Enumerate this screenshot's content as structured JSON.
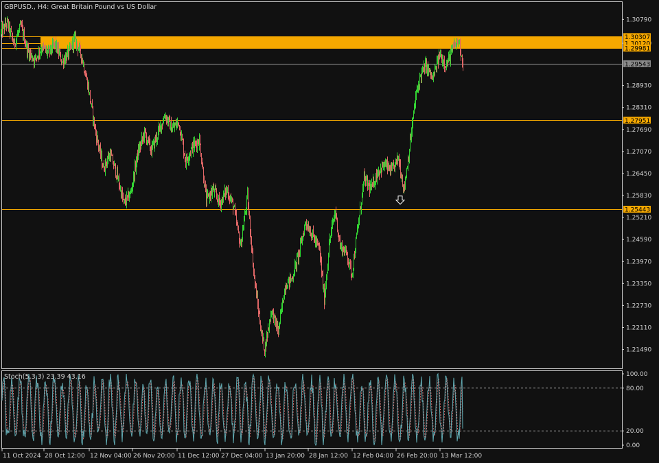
{
  "header": {
    "symbol_line": "GBPUSD., H4:  Great Britain Pound vs US Dollar"
  },
  "colors": {
    "background": "#111111",
    "frame": "#cfcfcf",
    "bull": "#33d433",
    "bear": "#e06666",
    "level": "#f5a800",
    "zone": "#f5a800",
    "current_line": "#9a9a9a",
    "stoch_main": "#5fa8b0",
    "stoch_signal": "#e07070"
  },
  "chart_data": [
    {
      "type": "candlestick",
      "title": "GBPUSD., H4:  Great Britain Pound vs US Dollar",
      "ylim": [
        1.2096,
        1.3128
      ],
      "y_ticks": [
        "1.30790",
        "1.30120",
        "1.28930",
        "1.28310",
        "1.27690",
        "1.27070",
        "1.26450",
        "1.25830",
        "1.25210",
        "1.24590",
        "1.23970",
        "1.23350",
        "1.22730",
        "1.22110",
        "1.21490"
      ],
      "x_ticks": [
        "11 Oct 2024",
        "28 Oct 12:00",
        "12 Nov 04:00",
        "26 Nov 20:00",
        "11 Dec 12:00",
        "27 Dec 04:00",
        "13 Jan 20:00",
        "28 Jan 12:00",
        "12 Feb 04:00",
        "26 Feb 20:00",
        "13 Mar 12:00"
      ],
      "price_path": [
        [
          0,
          1.304
        ],
        [
          10,
          1.307
        ],
        [
          20,
          1.301
        ],
        [
          30,
          1.306
        ],
        [
          40,
          1.299
        ],
        [
          50,
          1.2965
        ],
        [
          60,
          1.3
        ],
        [
          70,
          1.2985
        ],
        [
          80,
          1.301
        ],
        [
          90,
          1.296
        ],
        [
          100,
          1.2985
        ],
        [
          108,
          1.3025
        ],
        [
          118,
          1.298
        ],
        [
          128,
          1.289
        ],
        [
          138,
          1.277
        ],
        [
          150,
          1.266
        ],
        [
          160,
          1.27
        ],
        [
          170,
          1.264
        ],
        [
          180,
          1.256
        ],
        [
          190,
          1.259
        ],
        [
          200,
          1.27
        ],
        [
          210,
          1.276
        ],
        [
          220,
          1.271
        ],
        [
          230,
          1.276
        ],
        [
          240,
          1.281
        ],
        [
          250,
          1.277
        ],
        [
          260,
          1.279
        ],
        [
          270,
          1.268
        ],
        [
          280,
          1.272
        ],
        [
          290,
          1.274
        ],
        [
          300,
          1.257
        ],
        [
          310,
          1.26
        ],
        [
          320,
          1.256
        ],
        [
          330,
          1.26
        ],
        [
          340,
          1.255
        ],
        [
          350,
          1.244
        ],
        [
          360,
          1.258
        ],
        [
          370,
          1.235
        ],
        [
          380,
          1.22
        ],
        [
          385,
          1.215
        ],
        [
          395,
          1.226
        ],
        [
          405,
          1.22
        ],
        [
          415,
          1.233
        ],
        [
          425,
          1.235
        ],
        [
          435,
          1.242
        ],
        [
          445,
          1.251
        ],
        [
          455,
          1.247
        ],
        [
          465,
          1.243
        ],
        [
          472,
          1.229
        ],
        [
          480,
          1.246
        ],
        [
          488,
          1.254
        ],
        [
          495,
          1.244
        ],
        [
          505,
          1.242
        ],
        [
          512,
          1.236
        ],
        [
          520,
          1.248
        ],
        [
          530,
          1.263
        ],
        [
          540,
          1.26
        ],
        [
          550,
          1.265
        ],
        [
          560,
          1.267
        ],
        [
          570,
          1.265
        ],
        [
          580,
          1.269
        ],
        [
          588,
          1.26
        ],
        [
          595,
          1.27
        ],
        [
          605,
          1.286
        ],
        [
          612,
          1.292
        ],
        [
          620,
          1.295
        ],
        [
          630,
          1.291
        ],
        [
          640,
          1.298
        ],
        [
          650,
          1.295
        ],
        [
          660,
          1.3
        ],
        [
          668,
          1.302
        ],
        [
          674,
          1.2954
        ]
      ],
      "levels": [
        {
          "price": 1.30307,
          "label": "1.30307",
          "kind": "level"
        },
        {
          "price": 1.3012,
          "label": "1.30120",
          "kind": "level"
        },
        {
          "price": 1.29981,
          "label": "1.29981",
          "kind": "level"
        },
        {
          "price": 1.27951,
          "label": "1.27951",
          "kind": "level"
        },
        {
          "price": 1.25443,
          "label": "1.25443",
          "kind": "level"
        }
      ],
      "zone": {
        "top": 1.30307,
        "bottom": 1.29981
      },
      "current_price": {
        "price": 1.29543,
        "label": "1.29543"
      },
      "arrow_marker": {
        "bar_x": 583,
        "price": 1.257,
        "direction": "down"
      }
    },
    {
      "type": "line",
      "title": "Stoch(5,3,3) 23.39 43.16",
      "ylim": [
        0,
        100
      ],
      "y_ticks": [
        "100.00",
        "80.00",
        "20.00",
        "0.00"
      ],
      "levels": [
        80,
        20
      ],
      "series": [
        {
          "name": "Main",
          "last": 23.39
        },
        {
          "name": "Signal",
          "last": 43.16
        }
      ]
    }
  ],
  "stoch": {
    "label": "Stoch(5,3,3) 23.39 43.16"
  }
}
